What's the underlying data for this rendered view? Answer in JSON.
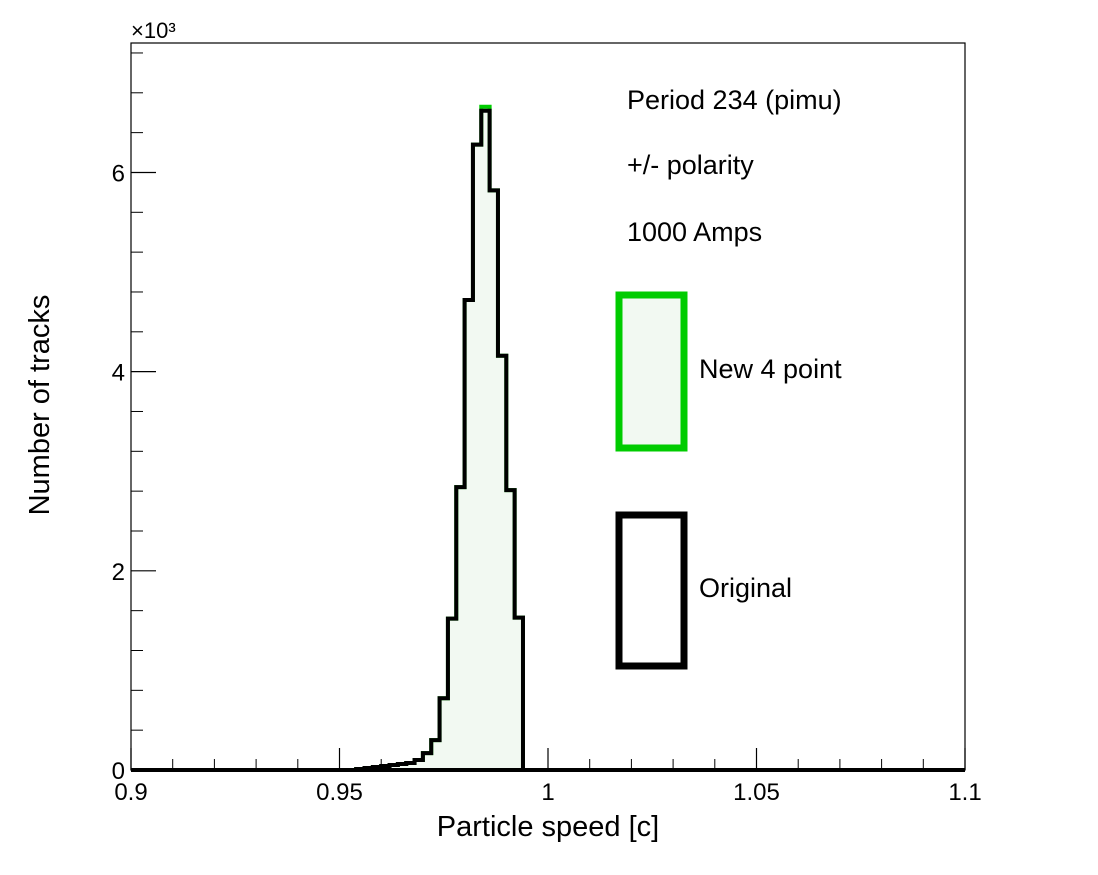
{
  "chart_data": {
    "type": "histogram",
    "xlabel": "Particle speed [c]",
    "ylabel": "Number of tracks",
    "y_multiplier": "×10³",
    "xlim": [
      0.9,
      1.1
    ],
    "ylim": [
      0,
      7.3
    ],
    "x_ticks": [
      {
        "value": 0.9,
        "label": "0.9"
      },
      {
        "value": 0.95,
        "label": "0.95"
      },
      {
        "value": 1.0,
        "label": "1"
      },
      {
        "value": 1.05,
        "label": "1.05"
      },
      {
        "value": 1.1,
        "label": "1.1"
      }
    ],
    "y_ticks": [
      {
        "value": 0,
        "label": "0"
      },
      {
        "value": 2,
        "label": "2"
      },
      {
        "value": 4,
        "label": "4"
      },
      {
        "value": 6,
        "label": "6"
      }
    ],
    "bin_width": 0.002,
    "bins_start": 0.954,
    "series": [
      {
        "name": "Original",
        "color": "#000000",
        "fill": "none",
        "values": [
          0.01,
          0.02,
          0.03,
          0.04,
          0.05,
          0.06,
          0.07,
          0.1,
          0.17,
          0.3,
          0.72,
          1.52,
          2.84,
          4.72,
          6.28,
          6.62,
          5.82,
          4.16,
          2.81,
          1.53,
          0.0
        ]
      },
      {
        "name": "New 4 point",
        "color": "#00cc00",
        "fill": "#f2f9f2",
        "values": [
          0.01,
          0.02,
          0.03,
          0.04,
          0.05,
          0.06,
          0.07,
          0.1,
          0.17,
          0.3,
          0.72,
          1.52,
          2.84,
          4.72,
          6.28,
          6.66,
          5.82,
          4.16,
          2.81,
          1.53,
          0.0
        ]
      }
    ],
    "annotations": [
      "Period 234 (pimu)",
      "+/- polarity",
      "1000 Amps"
    ],
    "legend_position": "right"
  }
}
